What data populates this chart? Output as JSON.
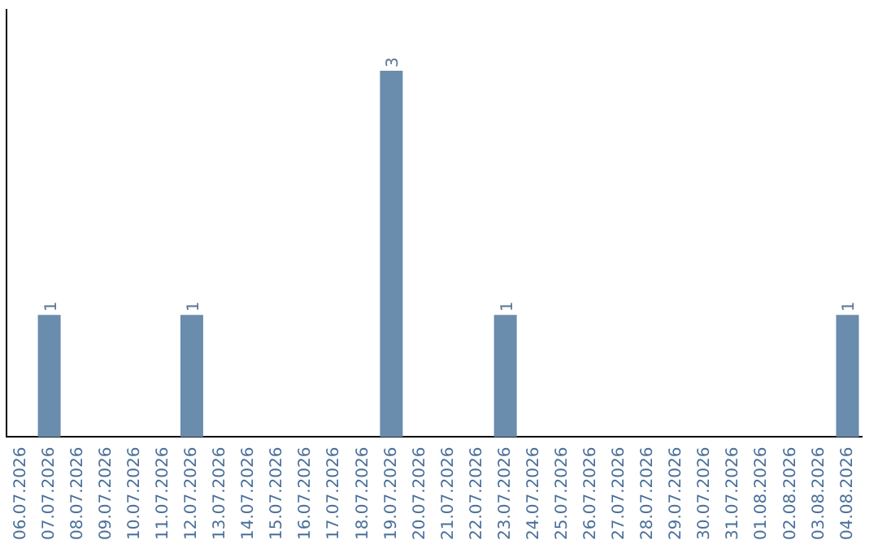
{
  "chart_data": {
    "type": "bar",
    "categories": [
      "06.07.2026",
      "07.07.2026",
      "08.07.2026",
      "09.07.2026",
      "10.07.2026",
      "11.07.2026",
      "12.07.2026",
      "13.07.2026",
      "14.07.2026",
      "15.07.2026",
      "16.07.2026",
      "17.07.2026",
      "18.07.2026",
      "19.07.2026",
      "20.07.2026",
      "21.07.2026",
      "22.07.2026",
      "23.07.2026",
      "24.07.2026",
      "25.07.2026",
      "26.07.2026",
      "27.07.2026",
      "28.07.2026",
      "29.07.2026",
      "30.07.2026",
      "31.07.2026",
      "01.08.2026",
      "02.08.2026",
      "03.08.2026",
      "04.08.2026"
    ],
    "values": [
      0,
      1,
      0,
      0,
      0,
      0,
      1,
      0,
      0,
      0,
      0,
      0,
      0,
      3,
      0,
      0,
      0,
      1,
      0,
      0,
      0,
      0,
      0,
      0,
      0,
      0,
      0,
      0,
      0,
      1
    ],
    "value_labels": [
      null,
      "1",
      null,
      null,
      null,
      null,
      "1",
      null,
      null,
      null,
      null,
      null,
      null,
      "3",
      null,
      null,
      null,
      "1",
      null,
      null,
      null,
      null,
      null,
      null,
      null,
      null,
      null,
      null,
      null,
      "1"
    ],
    "color": "#6a8cad",
    "tick_labels": "x",
    "grid": false,
    "legend": false
  }
}
